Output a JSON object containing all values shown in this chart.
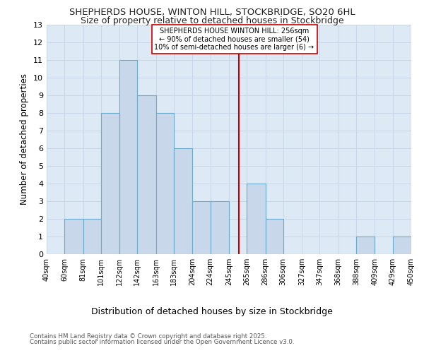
{
  "title1": "SHEPHERDS HOUSE, WINTON HILL, STOCKBRIDGE, SO20 6HL",
  "title2": "Size of property relative to detached houses in Stockbridge",
  "xlabel": "Distribution of detached houses by size in Stockbridge",
  "ylabel": "Number of detached properties",
  "bins": [
    "40sqm",
    "60sqm",
    "81sqm",
    "101sqm",
    "122sqm",
    "142sqm",
    "163sqm",
    "183sqm",
    "204sqm",
    "224sqm",
    "245sqm",
    "265sqm",
    "286sqm",
    "306sqm",
    "327sqm",
    "347sqm",
    "368sqm",
    "388sqm",
    "409sqm",
    "429sqm",
    "450sqm"
  ],
  "bin_edges": [
    40,
    60,
    81,
    101,
    122,
    142,
    163,
    183,
    204,
    224,
    245,
    265,
    286,
    306,
    327,
    347,
    368,
    388,
    409,
    429,
    450
  ],
  "values": [
    0,
    2,
    2,
    8,
    11,
    9,
    8,
    6,
    3,
    3,
    0,
    4,
    2,
    0,
    0,
    0,
    0,
    1,
    0,
    1,
    0
  ],
  "bar_color": "#c8d8ea",
  "bar_edgecolor": "#6aaacc",
  "bar_linewidth": 0.8,
  "vline_x": 256,
  "vline_color": "#cc0000",
  "vline_linewidth": 1.5,
  "annotation_title": "SHEPHERDS HOUSE WINTON HILL: 256sqm",
  "annotation_line1": "← 90% of detached houses are smaller (54)",
  "annotation_line2": "10% of semi-detached houses are larger (6) →",
  "annotation_box_color": "#ffffff",
  "annotation_box_edgecolor": "#cc0000",
  "ylim": [
    0,
    13
  ],
  "yticks": [
    0,
    1,
    2,
    3,
    4,
    5,
    6,
    7,
    8,
    9,
    10,
    11,
    12,
    13
  ],
  "grid_color": "#c8d8e8",
  "background_color": "#ddeaf6",
  "footer1": "Contains HM Land Registry data © Crown copyright and database right 2025.",
  "footer2": "Contains public sector information licensed under the Open Government Licence v3.0."
}
